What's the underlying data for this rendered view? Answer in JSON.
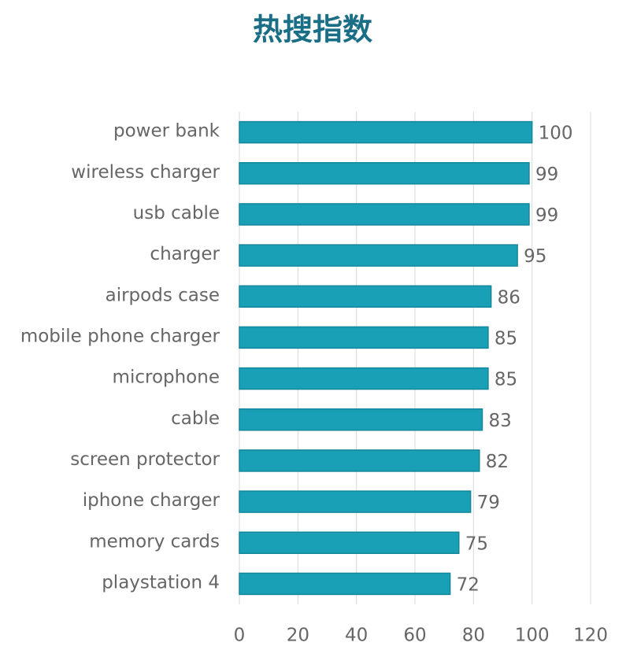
{
  "chart_data": {
    "type": "bar",
    "orientation": "horizontal",
    "title": "热搜指数",
    "categories": [
      "power bank",
      "wireless charger",
      "usb cable",
      "charger",
      "airpods case",
      "mobile phone charger",
      "microphone",
      "cable",
      "screen protector",
      "iphone charger",
      "memory cards",
      "playstation 4"
    ],
    "values": [
      100,
      99,
      99,
      95,
      86,
      85,
      85,
      83,
      82,
      79,
      75,
      72
    ],
    "color": "#1aa0b6",
    "xlim": [
      0,
      120
    ],
    "xticks": [
      0,
      20,
      40,
      60,
      80,
      100,
      120
    ],
    "grid": true
  }
}
